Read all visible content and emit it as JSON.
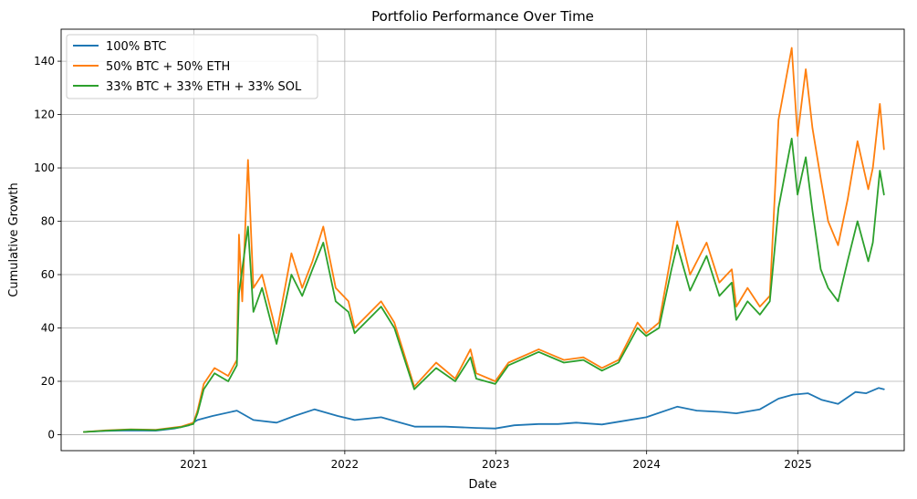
{
  "chart_data": {
    "type": "line",
    "title": "Portfolio Performance Over Time",
    "xlabel": "Date",
    "ylabel": "Cumulative Growth",
    "xlim": [
      "2020-02-15",
      "2025-09-15"
    ],
    "ylim": [
      -6,
      152
    ],
    "x_ticks": [
      "2021",
      "2022",
      "2023",
      "2024",
      "2025"
    ],
    "y_ticks": [
      0,
      20,
      40,
      60,
      80,
      100,
      120,
      140
    ],
    "grid": true,
    "legend": "top-left",
    "colors": [
      "#1f77b4",
      "#ff7f0e",
      "#2ca02c"
    ],
    "series": [
      {
        "name": "100% BTC",
        "points": [
          [
            "2020-04-10",
            1.0
          ],
          [
            "2020-06-01",
            1.4
          ],
          [
            "2020-08-01",
            1.6
          ],
          [
            "2020-10-01",
            1.5
          ],
          [
            "2020-11-15",
            2.3
          ],
          [
            "2020-12-20",
            3.5
          ],
          [
            "2021-01-10",
            5.5
          ],
          [
            "2021-02-15",
            7.0
          ],
          [
            "2021-04-15",
            9.0
          ],
          [
            "2021-05-25",
            5.5
          ],
          [
            "2021-07-20",
            4.5
          ],
          [
            "2021-09-01",
            7.0
          ],
          [
            "2021-10-20",
            9.5
          ],
          [
            "2021-12-15",
            7.0
          ],
          [
            "2022-01-25",
            5.5
          ],
          [
            "2022-03-30",
            6.5
          ],
          [
            "2022-05-15",
            4.5
          ],
          [
            "2022-06-20",
            3.0
          ],
          [
            "2022-09-01",
            3.0
          ],
          [
            "2022-11-15",
            2.5
          ],
          [
            "2022-12-31",
            2.3
          ],
          [
            "2023-02-15",
            3.5
          ],
          [
            "2023-04-15",
            4.0
          ],
          [
            "2023-06-01",
            4.0
          ],
          [
            "2023-07-15",
            4.5
          ],
          [
            "2023-09-15",
            3.8
          ],
          [
            "2023-11-01",
            5.0
          ],
          [
            "2023-12-31",
            6.5
          ],
          [
            "2024-03-15",
            10.5
          ],
          [
            "2024-05-01",
            9.0
          ],
          [
            "2024-07-01",
            8.5
          ],
          [
            "2024-08-05",
            8.0
          ],
          [
            "2024-10-01",
            9.5
          ],
          [
            "2024-11-15",
            13.5
          ],
          [
            "2024-12-20",
            15.0
          ],
          [
            "2025-01-25",
            15.5
          ],
          [
            "2025-02-28",
            13.0
          ],
          [
            "2025-04-08",
            11.5
          ],
          [
            "2025-05-20",
            16.0
          ],
          [
            "2025-06-15",
            15.5
          ],
          [
            "2025-07-15",
            17.5
          ],
          [
            "2025-07-28",
            17.0
          ]
        ]
      },
      {
        "name": "50% BTC + 50% ETH",
        "points": [
          [
            "2020-04-10",
            1.0
          ],
          [
            "2020-06-01",
            1.6
          ],
          [
            "2020-08-01",
            2.0
          ],
          [
            "2020-10-01",
            1.8
          ],
          [
            "2020-12-01",
            3.0
          ],
          [
            "2020-12-31",
            4.5
          ],
          [
            "2021-01-10",
            9.0
          ],
          [
            "2021-01-25",
            19.0
          ],
          [
            "2021-02-20",
            25.0
          ],
          [
            "2021-03-25",
            22.0
          ],
          [
            "2021-04-15",
            28.0
          ],
          [
            "2021-04-20",
            75.0
          ],
          [
            "2021-04-28",
            50.0
          ],
          [
            "2021-05-12",
            103.0
          ],
          [
            "2021-05-25",
            55.0
          ],
          [
            "2021-06-15",
            60.0
          ],
          [
            "2021-07-20",
            38.0
          ],
          [
            "2021-08-25",
            68.0
          ],
          [
            "2021-09-20",
            55.0
          ],
          [
            "2021-10-15",
            65.0
          ],
          [
            "2021-11-10",
            78.0
          ],
          [
            "2021-12-10",
            55.0
          ],
          [
            "2022-01-10",
            50.0
          ],
          [
            "2022-01-25",
            40.0
          ],
          [
            "2022-03-30",
            50.0
          ],
          [
            "2022-05-01",
            42.0
          ],
          [
            "2022-06-18",
            18.0
          ],
          [
            "2022-08-10",
            27.0
          ],
          [
            "2022-09-25",
            21.0
          ],
          [
            "2022-11-01",
            32.0
          ],
          [
            "2022-11-15",
            23.0
          ],
          [
            "2022-12-31",
            20.0
          ],
          [
            "2023-02-01",
            27.0
          ],
          [
            "2023-04-15",
            32.0
          ],
          [
            "2023-06-15",
            28.0
          ],
          [
            "2023-08-01",
            29.0
          ],
          [
            "2023-09-15",
            25.0
          ],
          [
            "2023-10-25",
            28.0
          ],
          [
            "2023-12-10",
            42.0
          ],
          [
            "2023-12-31",
            38.0
          ],
          [
            "2024-01-31",
            42.0
          ],
          [
            "2024-03-01",
            68.0
          ],
          [
            "2024-03-15",
            80.0
          ],
          [
            "2024-04-15",
            60.0
          ],
          [
            "2024-05-25",
            72.0
          ],
          [
            "2024-06-25",
            57.0
          ],
          [
            "2024-07-25",
            62.0
          ],
          [
            "2024-08-05",
            48.0
          ],
          [
            "2024-09-01",
            55.0
          ],
          [
            "2024-10-01",
            48.0
          ],
          [
            "2024-10-25",
            52.0
          ],
          [
            "2024-11-15",
            118.0
          ],
          [
            "2024-12-17",
            145.0
          ],
          [
            "2024-12-31",
            112.0
          ],
          [
            "2025-01-20",
            137.0
          ],
          [
            "2025-02-05",
            115.0
          ],
          [
            "2025-02-25",
            96.0
          ],
          [
            "2025-03-15",
            80.0
          ],
          [
            "2025-04-08",
            71.0
          ],
          [
            "2025-05-01",
            88.0
          ],
          [
            "2025-05-25",
            110.0
          ],
          [
            "2025-06-20",
            92.0
          ],
          [
            "2025-07-01",
            100.0
          ],
          [
            "2025-07-18",
            124.0
          ],
          [
            "2025-07-28",
            107.0
          ]
        ]
      },
      {
        "name": "33% BTC + 33% ETH + 33% SOL",
        "points": [
          [
            "2020-04-10",
            1.0
          ],
          [
            "2020-06-01",
            1.5
          ],
          [
            "2020-08-01",
            1.9
          ],
          [
            "2020-10-01",
            1.7
          ],
          [
            "2020-12-01",
            2.8
          ],
          [
            "2020-12-31",
            4.0
          ],
          [
            "2021-01-10",
            8.0
          ],
          [
            "2021-01-25",
            17.0
          ],
          [
            "2021-02-20",
            23.0
          ],
          [
            "2021-03-25",
            20.0
          ],
          [
            "2021-04-15",
            26.0
          ],
          [
            "2021-04-20",
            53.0
          ],
          [
            "2021-05-12",
            78.0
          ],
          [
            "2021-05-25",
            46.0
          ],
          [
            "2021-06-15",
            55.0
          ],
          [
            "2021-07-20",
            34.0
          ],
          [
            "2021-08-25",
            60.0
          ],
          [
            "2021-09-20",
            52.0
          ],
          [
            "2021-10-15",
            62.0
          ],
          [
            "2021-11-10",
            72.0
          ],
          [
            "2021-12-10",
            50.0
          ],
          [
            "2022-01-10",
            46.0
          ],
          [
            "2022-01-25",
            38.0
          ],
          [
            "2022-03-30",
            48.0
          ],
          [
            "2022-05-01",
            40.0
          ],
          [
            "2022-06-18",
            17.0
          ],
          [
            "2022-08-10",
            25.0
          ],
          [
            "2022-09-25",
            20.0
          ],
          [
            "2022-11-01",
            29.0
          ],
          [
            "2022-11-15",
            21.0
          ],
          [
            "2022-12-31",
            19.0
          ],
          [
            "2023-02-01",
            26.0
          ],
          [
            "2023-04-15",
            31.0
          ],
          [
            "2023-06-15",
            27.0
          ],
          [
            "2023-08-01",
            28.0
          ],
          [
            "2023-09-15",
            24.0
          ],
          [
            "2023-10-25",
            27.0
          ],
          [
            "2023-12-10",
            40.0
          ],
          [
            "2023-12-31",
            37.0
          ],
          [
            "2024-01-31",
            40.0
          ],
          [
            "2024-03-01",
            62.0
          ],
          [
            "2024-03-15",
            71.0
          ],
          [
            "2024-04-15",
            54.0
          ],
          [
            "2024-05-25",
            67.0
          ],
          [
            "2024-06-25",
            52.0
          ],
          [
            "2024-07-25",
            57.0
          ],
          [
            "2024-08-05",
            43.0
          ],
          [
            "2024-09-01",
            50.0
          ],
          [
            "2024-10-01",
            45.0
          ],
          [
            "2024-10-25",
            50.0
          ],
          [
            "2024-11-15",
            85.0
          ],
          [
            "2024-12-17",
            111.0
          ],
          [
            "2024-12-31",
            90.0
          ],
          [
            "2025-01-20",
            104.0
          ],
          [
            "2025-02-05",
            84.0
          ],
          [
            "2025-02-25",
            62.0
          ],
          [
            "2025-03-15",
            55.0
          ],
          [
            "2025-04-08",
            50.0
          ],
          [
            "2025-05-01",
            65.0
          ],
          [
            "2025-05-25",
            80.0
          ],
          [
            "2025-06-20",
            65.0
          ],
          [
            "2025-07-01",
            72.0
          ],
          [
            "2025-07-18",
            99.0
          ],
          [
            "2025-07-28",
            90.0
          ]
        ]
      }
    ]
  }
}
